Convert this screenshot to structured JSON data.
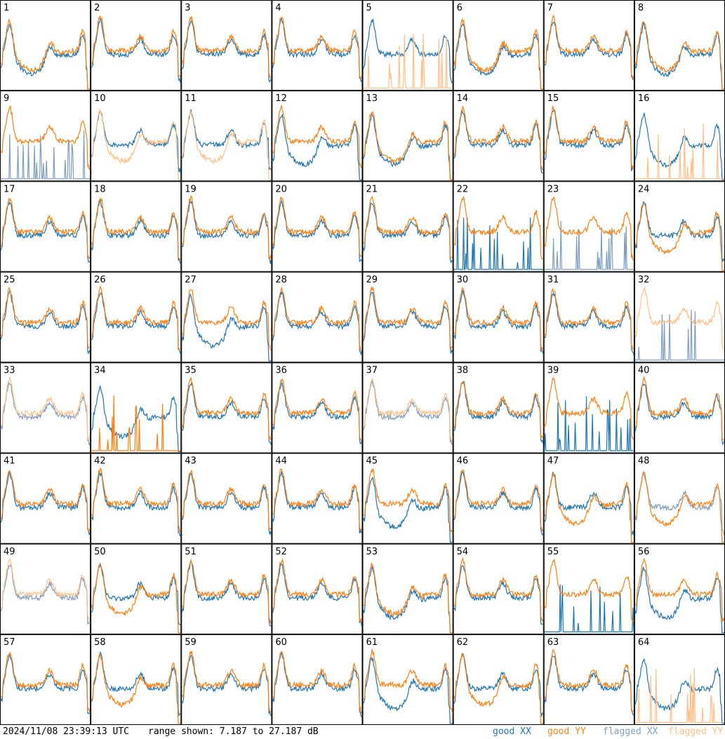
{
  "chart_data": {
    "type": "line",
    "layout_grid": "8x8 small-multiples",
    "panels": [
      "1",
      "2",
      "3",
      "4",
      "5",
      "6",
      "7",
      "8",
      "9",
      "10",
      "11",
      "12",
      "13",
      "14",
      "15",
      "16",
      "17",
      "18",
      "19",
      "20",
      "21",
      "22",
      "23",
      "24",
      "25",
      "26",
      "27",
      "28",
      "29",
      "30",
      "31",
      "32",
      "33",
      "34",
      "35",
      "36",
      "37",
      "38",
      "39",
      "40",
      "41",
      "42",
      "43",
      "44",
      "45",
      "46",
      "47",
      "48",
      "49",
      "50",
      "51",
      "52",
      "53",
      "54",
      "55",
      "56",
      "57",
      "58",
      "59",
      "60",
      "61",
      "62",
      "63",
      "64"
    ],
    "ylim_db": [
      7.187,
      27.187
    ],
    "grid": false,
    "series": [
      {
        "name": "good XX",
        "color": "#1f77b4"
      },
      {
        "name": "good YY",
        "color": "#ff7f0e"
      },
      {
        "name": "flagged XX",
        "color": "#7f9fbf"
      },
      {
        "name": "flagged YY",
        "color": "#ffbf87"
      }
    ],
    "panel_state": {
      "xx_flagged": [
        9,
        23,
        32,
        33,
        37,
        48,
        49
      ],
      "yy_flagged": [
        5,
        10,
        11,
        16,
        32,
        33,
        37,
        49,
        64
      ],
      "xx_spiky": [
        9,
        22,
        23,
        32,
        39,
        55
      ],
      "yy_spiky": [
        5,
        16,
        34,
        64
      ],
      "xx_low": [
        1,
        6,
        8,
        12,
        13,
        16,
        27,
        34,
        45,
        53,
        56,
        61,
        64
      ],
      "yy_low": [
        1,
        5,
        6,
        8,
        10,
        11,
        13,
        24,
        34,
        47,
        48,
        50,
        53,
        58,
        62
      ]
    }
  },
  "footer": {
    "timestamp": "2024/11/08 23:39:13 UTC",
    "range_text": "range shown: 7.187 to 27.187 dB"
  },
  "legend": {
    "good_xx": "good XX",
    "good_yy": "good YY",
    "flagged_xx": "flagged XX",
    "flagged_yy": "flagged YY"
  }
}
